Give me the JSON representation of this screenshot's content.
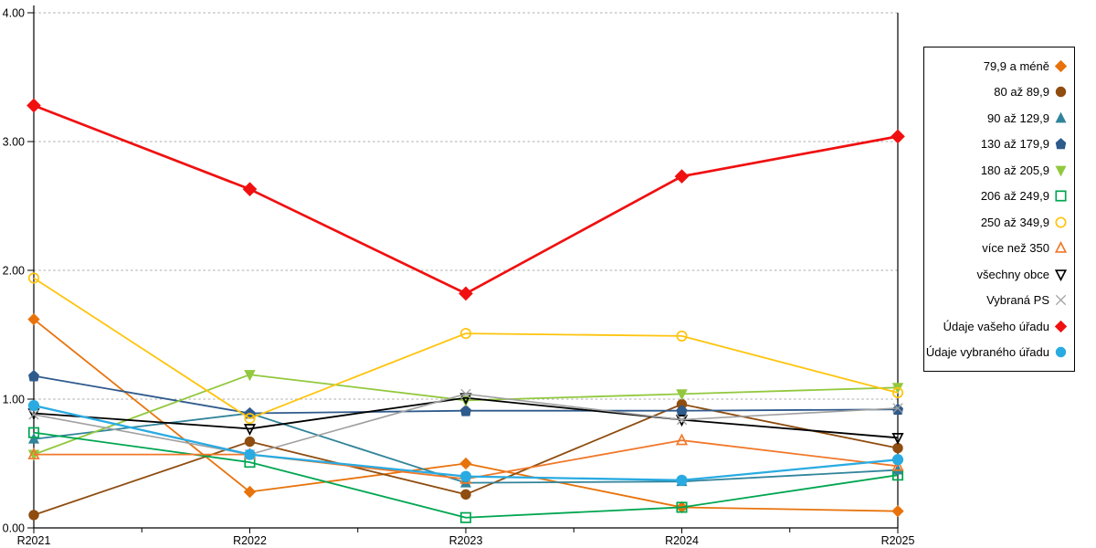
{
  "chart_data": {
    "type": "line",
    "title": "",
    "xlabel": "",
    "ylabel": "",
    "categories": [
      "R2021",
      "R2022",
      "R2023",
      "R2024",
      "R2025"
    ],
    "y_tick_labels": [
      "4.00",
      "3.00",
      "2.00",
      "1.00",
      "0.00"
    ],
    "ylim": [
      0,
      4
    ],
    "grid": "horizontal-dashed",
    "gridline_color": "#ABABAB",
    "axis_color": "#000000",
    "legend_position": "right",
    "series": [
      {
        "name": "79,9 a méně",
        "marker": "diamond",
        "filled": true,
        "color": "#E8730C",
        "line_width": 1.8,
        "marker_size": 5.2,
        "values": [
          1.62,
          0.28,
          0.5,
          0.16,
          0.13
        ]
      },
      {
        "name": "80 až 89,9",
        "marker": "circle",
        "filled": true,
        "color": "#8F4D10",
        "line_width": 1.8,
        "marker_size": 5.2,
        "values": [
          0.1,
          0.67,
          0.26,
          0.96,
          0.62
        ]
      },
      {
        "name": "90 až 129,9",
        "marker": "triangle-up",
        "filled": true,
        "color": "#31849B",
        "line_width": 1.8,
        "marker_size": 5.2,
        "values": [
          0.69,
          0.89,
          0.35,
          0.36,
          0.45
        ]
      },
      {
        "name": "130 až 179,9",
        "marker": "pentagon",
        "filled": true,
        "color": "#2F5A8C",
        "line_width": 1.8,
        "marker_size": 5.4,
        "values": [
          1.18,
          0.89,
          0.91,
          0.91,
          0.92
        ]
      },
      {
        "name": "180 až 205,9",
        "marker": "triangle-down",
        "filled": true,
        "color": "#92C83E",
        "line_width": 1.8,
        "marker_size": 5.4,
        "values": [
          0.57,
          1.19,
          0.99,
          1.04,
          1.09
        ]
      },
      {
        "name": "206 až 249,9",
        "marker": "square",
        "filled": false,
        "color": "#00A651",
        "line_width": 1.8,
        "marker_size": 5.2,
        "values": [
          0.74,
          0.51,
          0.08,
          0.16,
          0.41
        ]
      },
      {
        "name": "250 až 349,9",
        "marker": "circle",
        "filled": false,
        "color": "#FFC40D",
        "line_width": 1.8,
        "marker_size": 5.2,
        "values": [
          1.94,
          0.85,
          1.51,
          1.49,
          1.05
        ]
      },
      {
        "name": "více než 350",
        "marker": "triangle-up",
        "filled": false,
        "color": "#F0782A",
        "line_width": 1.8,
        "marker_size": 5.2,
        "values": [
          0.57,
          0.57,
          0.38,
          0.68,
          0.48
        ]
      },
      {
        "name": "všechny obce",
        "marker": "triangle-down",
        "filled": false,
        "color": "#000000",
        "line_width": 1.8,
        "marker_size": 5.2,
        "values": [
          0.89,
          0.77,
          1.01,
          0.84,
          0.7
        ]
      },
      {
        "name": "Vybraná PS",
        "marker": "x",
        "filled": false,
        "color": "#A0A0A0",
        "line_width": 1.6,
        "marker_size": 5.2,
        "values": [
          0.88,
          0.57,
          1.04,
          0.84,
          0.93
        ]
      },
      {
        "name": "Údaje vašeho úřadu",
        "marker": "diamond",
        "filled": true,
        "color": "#F01010",
        "line_width": 2.7,
        "marker_size": 6.2,
        "values": [
          3.28,
          2.63,
          1.82,
          2.73,
          3.04
        ]
      },
      {
        "name": "Údaje vybraného úřadu",
        "marker": "circle",
        "filled": true,
        "color": "#29ABE2",
        "line_width": 2.3,
        "marker_size": 5.6,
        "values": [
          0.95,
          0.57,
          0.4,
          0.37,
          0.53
        ]
      }
    ]
  }
}
